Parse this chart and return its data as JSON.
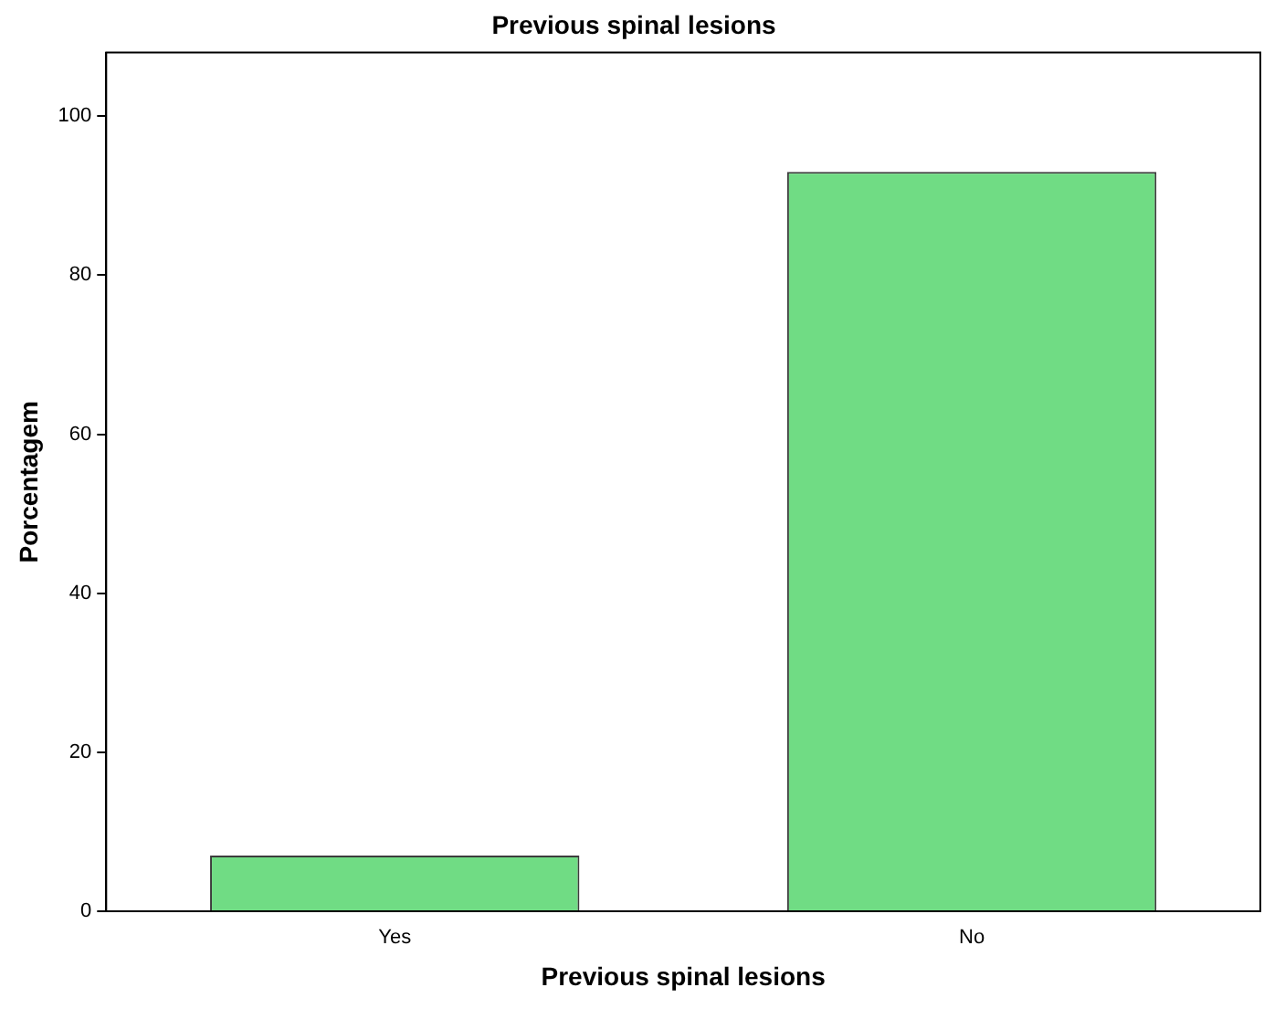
{
  "chart_data": {
    "type": "bar",
    "title": "Previous spinal lesions",
    "xlabel": "Previous spinal lesions",
    "ylabel": "Porcentagem",
    "categories": [
      "Yes",
      "No"
    ],
    "values": [
      7,
      93
    ],
    "color": "#70dc84",
    "ylim": [
      0,
      108
    ],
    "yticks": [
      0,
      20,
      40,
      60,
      80,
      100
    ],
    "grid": false,
    "legend": false
  }
}
